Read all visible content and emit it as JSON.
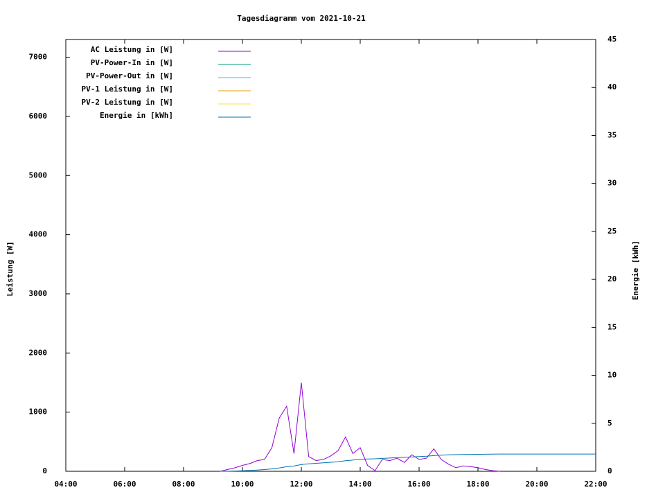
{
  "chart_data": {
    "type": "line",
    "title": "Tagesdiagramm vom 2021-10-21",
    "ylabel": "Leistung [W]",
    "y2label": "Energie [kWh]",
    "x": [
      9.25,
      9.5,
      9.75,
      10,
      10.25,
      10.5,
      10.75,
      11,
      11.25,
      11.5,
      11.75,
      12,
      12.25,
      12.5,
      12.75,
      13,
      13.25,
      13.5,
      13.75,
      14,
      14.25,
      14.5,
      14.75,
      15,
      15.25,
      15.5,
      15.75,
      16,
      16.25,
      16.5,
      16.75,
      17,
      17.25,
      17.5,
      17.75,
      18,
      18.25,
      18.5,
      18.75,
      19,
      19.25,
      19.5,
      19.75,
      20,
      20.25,
      20.5,
      20.75,
      21,
      21.25,
      21.5,
      21.75,
      22
    ],
    "xlim": [
      4,
      22
    ],
    "xticks": [
      {
        "value": 4,
        "label": "04:00"
      },
      {
        "value": 6,
        "label": "06:00"
      },
      {
        "value": 8,
        "label": "08:00"
      },
      {
        "value": 10,
        "label": "10:00"
      },
      {
        "value": 12,
        "label": "12:00"
      },
      {
        "value": 14,
        "label": "14:00"
      },
      {
        "value": 16,
        "label": "16:00"
      },
      {
        "value": 18,
        "label": "18:00"
      },
      {
        "value": 20,
        "label": "20:00"
      },
      {
        "value": 22,
        "label": "22:00"
      }
    ],
    "ylim": [
      0,
      7300
    ],
    "yticks": [
      0,
      1000,
      2000,
      3000,
      4000,
      5000,
      6000,
      7000
    ],
    "y2lim": [
      0,
      45
    ],
    "y2ticks": [
      0,
      5,
      10,
      15,
      20,
      25,
      30,
      35,
      40,
      45
    ],
    "series": [
      {
        "name": "AC Leistung in [W]",
        "color": "#9400d3",
        "values": [
          0,
          30,
          60,
          100,
          130,
          180,
          200,
          400,
          900,
          1100,
          300,
          1500,
          250,
          180,
          200,
          260,
          350,
          580,
          300,
          400,
          100,
          10,
          200,
          180,
          220,
          150,
          280,
          200,
          220,
          380,
          200,
          120,
          60,
          90,
          80,
          60,
          30,
          10,
          0,
          null,
          null,
          null,
          null,
          null,
          null,
          null,
          null,
          null,
          null,
          null,
          null,
          null
        ]
      },
      {
        "name": "PV-Power-In in [W]",
        "color": "#009e73"
      },
      {
        "name": "PV-Power-Out in [W]",
        "color": "#56b4e9"
      },
      {
        "name": "PV-1 Leistung in [W]",
        "color": "#e69f00"
      },
      {
        "name": "PV-2 Leistung in [W]",
        "color": "#f0e442"
      },
      {
        "name": "Energie in [kWh]",
        "color": "#0072b2",
        "axis": "y2",
        "values": [
          0,
          0.01,
          0.03,
          0.05,
          0.09,
          0.13,
          0.18,
          0.25,
          0.35,
          0.48,
          0.55,
          0.7,
          0.78,
          0.83,
          0.88,
          0.94,
          1.0,
          1.1,
          1.17,
          1.25,
          1.28,
          1.3,
          1.34,
          1.38,
          1.42,
          1.45,
          1.49,
          1.53,
          1.57,
          1.63,
          1.68,
          1.71,
          1.73,
          1.75,
          1.76,
          1.77,
          1.78,
          1.79,
          1.8,
          1.8,
          1.8,
          1.8,
          1.8,
          1.8,
          1.8,
          1.8,
          1.8,
          1.8,
          1.8,
          1.8,
          1.8,
          1.8
        ]
      }
    ]
  }
}
